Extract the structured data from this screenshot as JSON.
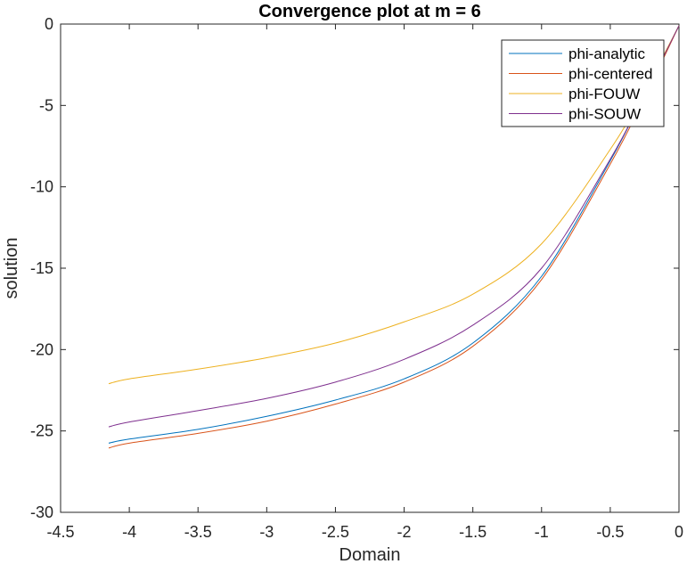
{
  "chart_data": {
    "type": "line",
    "title": "Convergence plot at m = 6",
    "xlabel": "Domain",
    "ylabel": "solution",
    "xlim": [
      -4.5,
      0
    ],
    "ylim": [
      -30,
      0
    ],
    "xticks": [
      -4.5,
      -4,
      -3.5,
      -3,
      -2.5,
      -2,
      -1.5,
      -1,
      -0.5,
      0
    ],
    "xtick_labels": [
      "-4.5",
      "-4",
      "-3.5",
      "-3",
      "-2.5",
      "-2",
      "-1.5",
      "-1",
      "-0.5",
      "0"
    ],
    "yticks": [
      0,
      -5,
      -10,
      -15,
      -20,
      -25,
      -30
    ],
    "ytick_labels": [
      "0",
      "-5",
      "-10",
      "-15",
      "-20",
      "-25",
      "-30"
    ],
    "grid": false,
    "legend_position": "top-right",
    "x": [
      -4.15,
      -4.0,
      -3.5,
      -3.0,
      -2.5,
      -2.0,
      -1.5,
      -1.0,
      -0.5,
      -0.25,
      0.0
    ],
    "series": [
      {
        "name": "phi-analytic",
        "color": "#0072BD",
        "values": [
          -25.75,
          -25.5,
          -24.9,
          -24.1,
          -23.1,
          -21.8,
          -19.6,
          -15.5,
          -8.4,
          -4.3,
          -0.1
        ]
      },
      {
        "name": "phi-centered",
        "color": "#D95319",
        "values": [
          -26.05,
          -25.75,
          -25.15,
          -24.4,
          -23.35,
          -22.0,
          -19.8,
          -15.7,
          -8.6,
          -4.5,
          -0.1
        ]
      },
      {
        "name": "phi-FOUW",
        "color": "#EDB120",
        "values": [
          -22.1,
          -21.8,
          -21.2,
          -20.5,
          -19.6,
          -18.3,
          -16.6,
          -13.5,
          -7.7,
          -4.1,
          -0.1
        ]
      },
      {
        "name": "phi-SOUW",
        "color": "#7E2F8E",
        "values": [
          -24.75,
          -24.45,
          -23.75,
          -23.0,
          -22.0,
          -20.6,
          -18.5,
          -15.0,
          -8.3,
          -4.3,
          -0.1
        ]
      }
    ]
  }
}
